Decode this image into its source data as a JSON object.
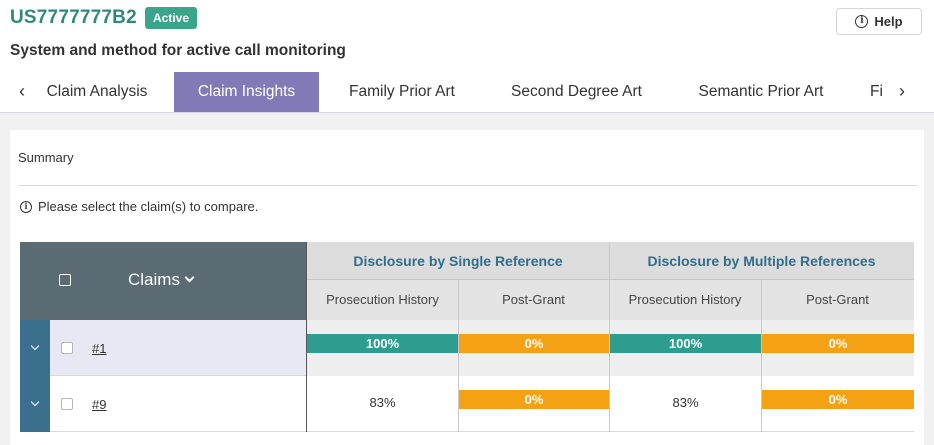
{
  "header": {
    "patent_id": "US7777777B2",
    "status": "Active",
    "help_label": "Help",
    "help_icon": "info-circle-icon",
    "title": "System and method for active call monitoring"
  },
  "tabs": {
    "prev_icon": "chevron-left-icon",
    "next_icon": "chevron-right-icon",
    "items": [
      {
        "label": "Claim Analysis",
        "active": false
      },
      {
        "label": "Claim Insights",
        "active": true
      },
      {
        "label": "Family Prior Art",
        "active": false
      },
      {
        "label": "Second Degree Art",
        "active": false
      },
      {
        "label": "Semantic Prior Art",
        "active": false
      },
      {
        "label": "Fi",
        "active": false
      }
    ]
  },
  "summary": {
    "label": "Summary",
    "notice": "Please select the claim(s) to compare."
  },
  "table": {
    "claims_header": "Claims",
    "groups": [
      {
        "label": "Disclosure by Single Reference",
        "columns": [
          "Prosecution History",
          "Post-Grant"
        ]
      },
      {
        "label": "Disclosure by Multiple References",
        "columns": [
          "Prosecution History",
          "Post-Grant"
        ]
      }
    ],
    "rows": [
      {
        "claim": "#1",
        "values": [
          "100%",
          "0%",
          "100%",
          "0%"
        ],
        "fractions": [
          1.0,
          0.0,
          1.0,
          0.0
        ]
      },
      {
        "claim": "#9",
        "values": [
          "83%",
          "0%",
          "83%",
          "0%"
        ],
        "fractions": [
          0.83,
          0.0,
          0.83,
          0.0
        ]
      }
    ]
  },
  "colors": {
    "brand_green": "#2e8b7c",
    "active_tab": "#8279b7",
    "header_dark": "#5a6b74",
    "expander": "#3b6f8e",
    "teal_bar": "#2e9c8f",
    "orange_bar": "#f5a114"
  }
}
